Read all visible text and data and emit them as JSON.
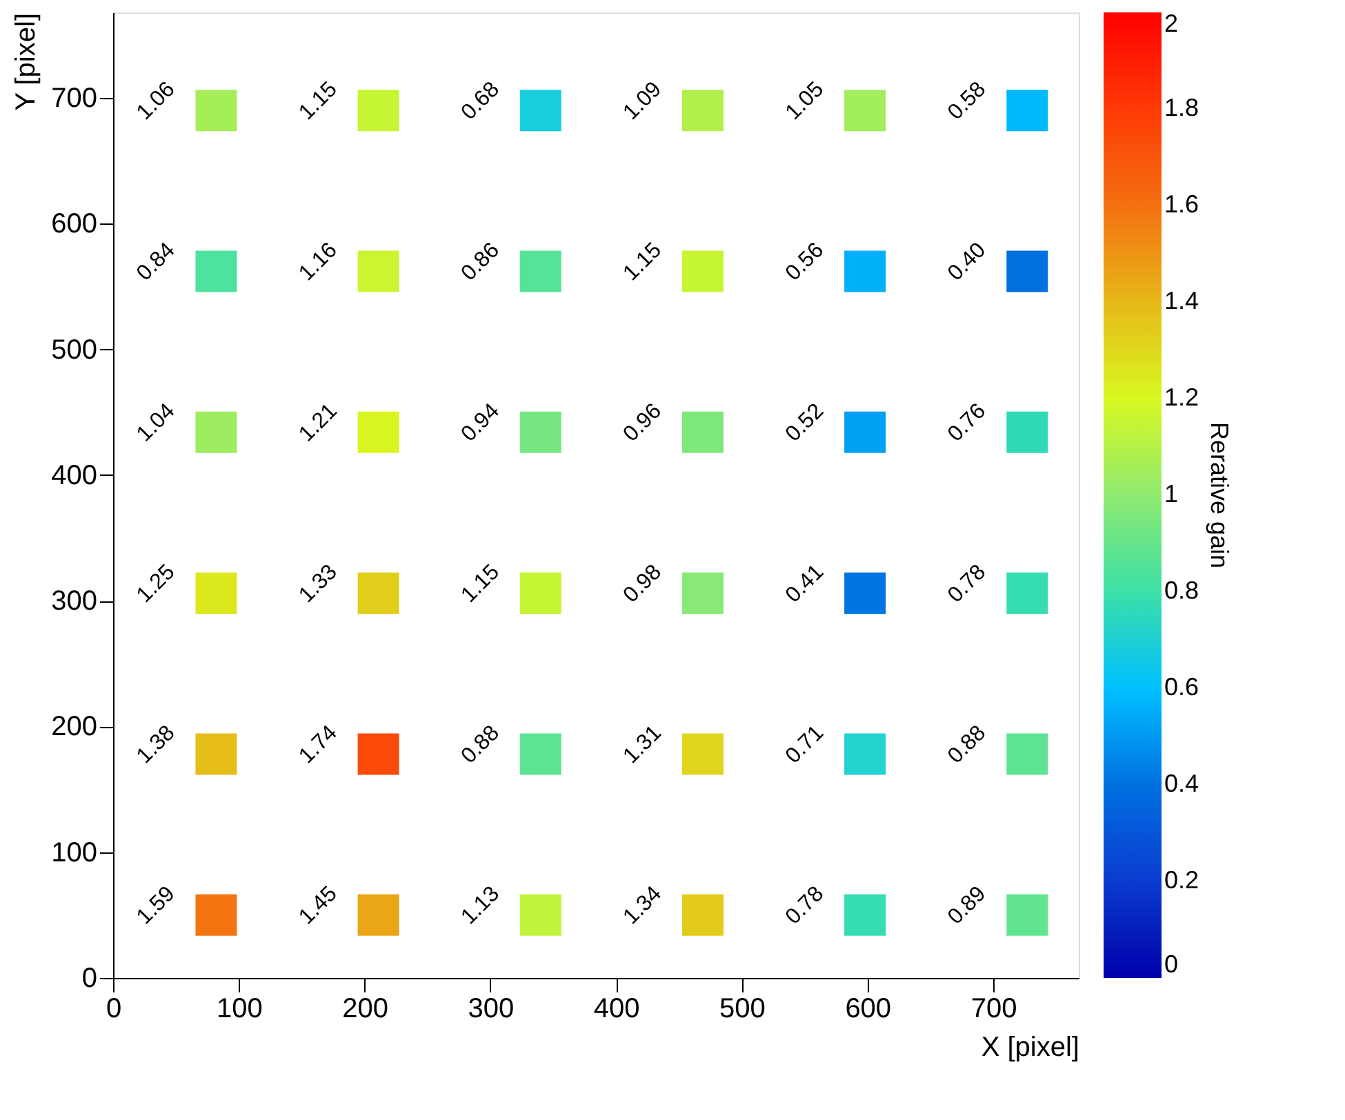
{
  "chart_data": {
    "type": "scatter",
    "xlabel": "X [pixel]",
    "ylabel": "Y [pixel]",
    "clabel": "Rerative gain",
    "marker": "square",
    "grid": false,
    "xlim": [
      0,
      768
    ],
    "ylim": [
      0,
      768
    ],
    "xticks": [
      0,
      100,
      200,
      300,
      400,
      500,
      600,
      700
    ],
    "yticks": [
      0,
      100,
      200,
      300,
      400,
      500,
      600,
      700
    ],
    "clim": [
      0,
      2
    ],
    "cticks": [
      0,
      0.2,
      0.4,
      0.6,
      0.8,
      1,
      1.2,
      1.4,
      1.6,
      1.8,
      2
    ],
    "x": [
      82,
      211,
      340,
      469,
      598,
      727,
      82,
      211,
      340,
      469,
      598,
      727,
      82,
      211,
      340,
      469,
      598,
      727,
      82,
      211,
      340,
      469,
      598,
      727,
      82,
      211,
      340,
      469,
      598,
      727,
      82,
      211,
      340,
      469,
      598,
      727
    ],
    "values": [
      690,
      690,
      690,
      690,
      690,
      690,
      562,
      562,
      562,
      562,
      562,
      562,
      434,
      434,
      434,
      434,
      434,
      434,
      306,
      306,
      306,
      306,
      306,
      306,
      178,
      178,
      178,
      178,
      178,
      178,
      50,
      50,
      50,
      50,
      50,
      50
    ],
    "cvalues": [
      1.06,
      1.15,
      0.68,
      1.09,
      1.05,
      0.58,
      0.84,
      1.16,
      0.86,
      1.15,
      0.56,
      0.4,
      1.04,
      1.21,
      0.94,
      0.96,
      0.52,
      0.76,
      1.25,
      1.33,
      1.15,
      0.98,
      0.41,
      0.78,
      1.38,
      1.74,
      0.88,
      1.31,
      0.71,
      0.88,
      1.59,
      1.45,
      1.13,
      1.34,
      0.78,
      0.89
    ],
    "annotations": [
      {
        "text": "1.06",
        "x": 82,
        "y": 690
      },
      {
        "text": "1.15",
        "x": 211,
        "y": 690
      },
      {
        "text": "0.68",
        "x": 340,
        "y": 690
      },
      {
        "text": "1.09",
        "x": 469,
        "y": 690
      },
      {
        "text": "1.05",
        "x": 598,
        "y": 690
      },
      {
        "text": "0.58",
        "x": 727,
        "y": 690
      },
      {
        "text": "0.84",
        "x": 82,
        "y": 562
      },
      {
        "text": "1.16",
        "x": 211,
        "y": 562
      },
      {
        "text": "0.86",
        "x": 340,
        "y": 562
      },
      {
        "text": "1.15",
        "x": 469,
        "y": 562
      },
      {
        "text": "0.56",
        "x": 598,
        "y": 562
      },
      {
        "text": "0.40",
        "x": 727,
        "y": 562
      },
      {
        "text": "1.04",
        "x": 82,
        "y": 434
      },
      {
        "text": "1.21",
        "x": 211,
        "y": 434
      },
      {
        "text": "0.94",
        "x": 340,
        "y": 434
      },
      {
        "text": "0.96",
        "x": 469,
        "y": 434
      },
      {
        "text": "0.52",
        "x": 598,
        "y": 434
      },
      {
        "text": "0.76",
        "x": 727,
        "y": 434
      },
      {
        "text": "1.25",
        "x": 82,
        "y": 306
      },
      {
        "text": "1.33",
        "x": 211,
        "y": 306
      },
      {
        "text": "1.15",
        "x": 340,
        "y": 306
      },
      {
        "text": "0.98",
        "x": 469,
        "y": 306
      },
      {
        "text": "0.41",
        "x": 598,
        "y": 306
      },
      {
        "text": "0.78",
        "x": 727,
        "y": 306
      },
      {
        "text": "1.38",
        "x": 82,
        "y": 178
      },
      {
        "text": "1.74",
        "x": 211,
        "y": 178
      },
      {
        "text": "0.88",
        "x": 340,
        "y": 178
      },
      {
        "text": "1.31",
        "x": 469,
        "y": 178
      },
      {
        "text": "0.71",
        "x": 598,
        "y": 178
      },
      {
        "text": "0.88",
        "x": 727,
        "y": 178
      },
      {
        "text": "1.59",
        "x": 82,
        "y": 50
      },
      {
        "text": "1.45",
        "x": 211,
        "y": 50
      },
      {
        "text": "1.13",
        "x": 340,
        "y": 50
      },
      {
        "text": "1.34",
        "x": 469,
        "y": 50
      },
      {
        "text": "0.78",
        "x": 598,
        "y": 50
      },
      {
        "text": "0.89",
        "x": 727,
        "y": 50
      }
    ]
  }
}
